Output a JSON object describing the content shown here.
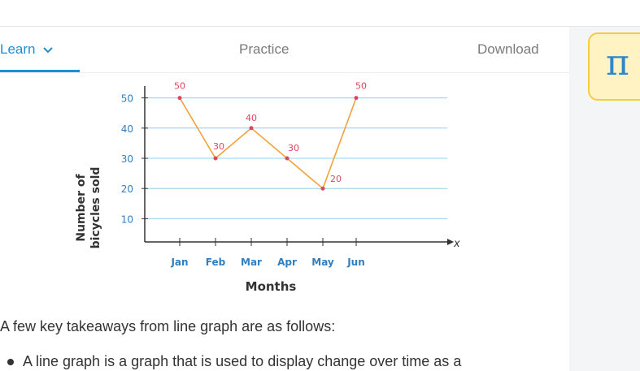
{
  "tabs": {
    "learn": "Learn",
    "practice": "Practice",
    "download": "Download"
  },
  "badge": {
    "glyph": "π"
  },
  "chart_data": {
    "type": "line",
    "categories": [
      "Jan",
      "Feb",
      "Mar",
      "Apr",
      "May",
      "Jun"
    ],
    "values": [
      50,
      30,
      40,
      30,
      20,
      50
    ],
    "data_labels": [
      "50",
      "30",
      "40",
      "30",
      "20",
      "50"
    ],
    "y_ticks": [
      "10",
      "20",
      "30",
      "40",
      "50"
    ],
    "ylabel_line1": "Number of",
    "ylabel_line2": "bicycles sold",
    "xlabel": "Months",
    "x_axis_symbol": "x",
    "ylim": [
      0,
      50
    ],
    "grid": true,
    "colors": {
      "line": "#f2a23a",
      "point": "#e0455e",
      "label": "#e0455e",
      "tick": "#2f7fc1",
      "grid": "#8fd0e8",
      "axis": "#333333"
    }
  },
  "content": {
    "intro": "A few key takeaways from line graph are as follows:",
    "bullet": "A line graph is a graph that is used to display change over time as a"
  }
}
